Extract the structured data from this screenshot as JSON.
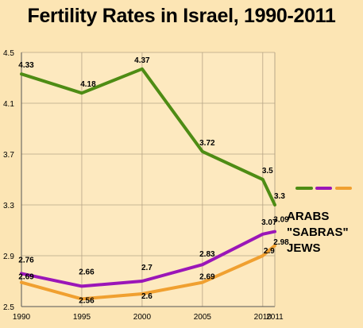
{
  "chart_data": {
    "type": "line",
    "title": "Fertility Rates in Israel, 1990-2011",
    "x": [
      1990,
      1995,
      2000,
      2005,
      2010,
      2011
    ],
    "x_tick_labels": [
      "1990",
      "1995",
      "2000",
      "2005",
      "2010",
      "2011"
    ],
    "y_tick_labels": [
      "2.5",
      "2.9",
      "3.3",
      "3.7",
      "4.1",
      "4.5"
    ],
    "ylim": [
      2.5,
      4.5
    ],
    "grid": true,
    "legend_position": "right",
    "series": [
      {
        "name": "ARABS",
        "color": "#4e8c14",
        "values": [
          4.33,
          4.18,
          4.37,
          3.72,
          3.5,
          3.3
        ],
        "labels": [
          "4.33",
          "4.18",
          "4.37",
          "3.72",
          "3.5",
          "3.3"
        ]
      },
      {
        "name": "\"SABRAS\"",
        "color": "#9b16b8",
        "values": [
          2.76,
          2.66,
          2.7,
          2.83,
          3.07,
          3.09
        ],
        "labels": [
          "2.76",
          "2.66",
          "2.7",
          "2.83",
          "3.07",
          "3.09"
        ]
      },
      {
        "name": "JEWS",
        "color": "#f0a030",
        "values": [
          2.69,
          2.56,
          2.6,
          2.69,
          2.9,
          2.98
        ],
        "labels": [
          "2.69",
          "2.56",
          "2.6",
          "2.69",
          "2.9",
          "2.98"
        ]
      }
    ]
  }
}
